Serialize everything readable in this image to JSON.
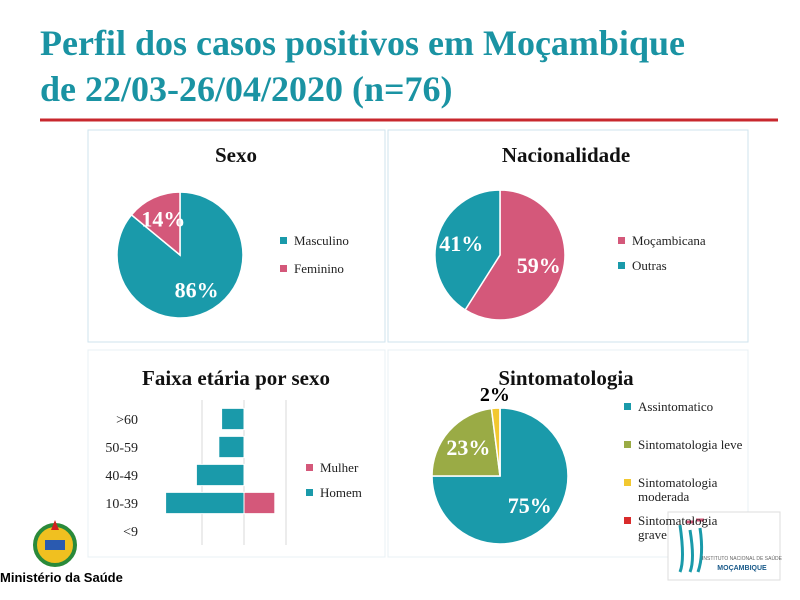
{
  "title": [
    "Perfil dos casos positivos em Moçambique",
    "de 22/03-26/04/2020 (n=76)"
  ],
  "footer": {
    "ministry": "Ministério da Saúde",
    "institute": "INSTITUTO NACIONAL DE SAÚDE",
    "country": "MOÇAMBIQUE"
  },
  "chart_data": [
    {
      "type": "pie",
      "title": "Sexo",
      "categories": [
        "Masculino",
        "Feminino"
      ],
      "values": [
        86,
        14
      ],
      "value_labels": [
        "86%",
        "14%"
      ],
      "colors": [
        "#1a9aaa",
        "#d4587a"
      ]
    },
    {
      "type": "pie",
      "title": "Nacionalidade",
      "categories": [
        "Moçambicana",
        "Outras"
      ],
      "values": [
        59,
        41
      ],
      "value_labels": [
        "59%",
        "41%"
      ],
      "colors": [
        "#d4587a",
        "#1a9aaa"
      ]
    },
    {
      "type": "bar",
      "orientation": "horizontal",
      "title": "Faixa etária por sexo",
      "categories": [
        ">60",
        "50-59",
        "40-49",
        "10-39",
        "<9"
      ],
      "series": [
        {
          "name": "Mulher",
          "color": "#d4587a",
          "values": [
            0,
            0,
            0,
            11,
            0
          ]
        },
        {
          "name": "Homem",
          "color": "#1a9aaa",
          "values": [
            -8,
            -9,
            -17,
            -28,
            0
          ]
        }
      ],
      "xlim": [
        -30,
        20
      ],
      "xticks": [
        -15,
        0,
        15
      ],
      "grid": true
    },
    {
      "type": "pie",
      "title": "Sintomatologia",
      "categories": [
        "Assintomatico",
        "Sintomatologia leve",
        "Sintomatologia moderada",
        "Sintomatologia grave"
      ],
      "values": [
        75,
        23,
        2,
        0
      ],
      "value_labels": [
        "75%",
        "23%",
        "2%",
        null
      ],
      "colors": [
        "#1a9aaa",
        "#9aab45",
        "#f2c830",
        "#d92b2b"
      ]
    }
  ]
}
